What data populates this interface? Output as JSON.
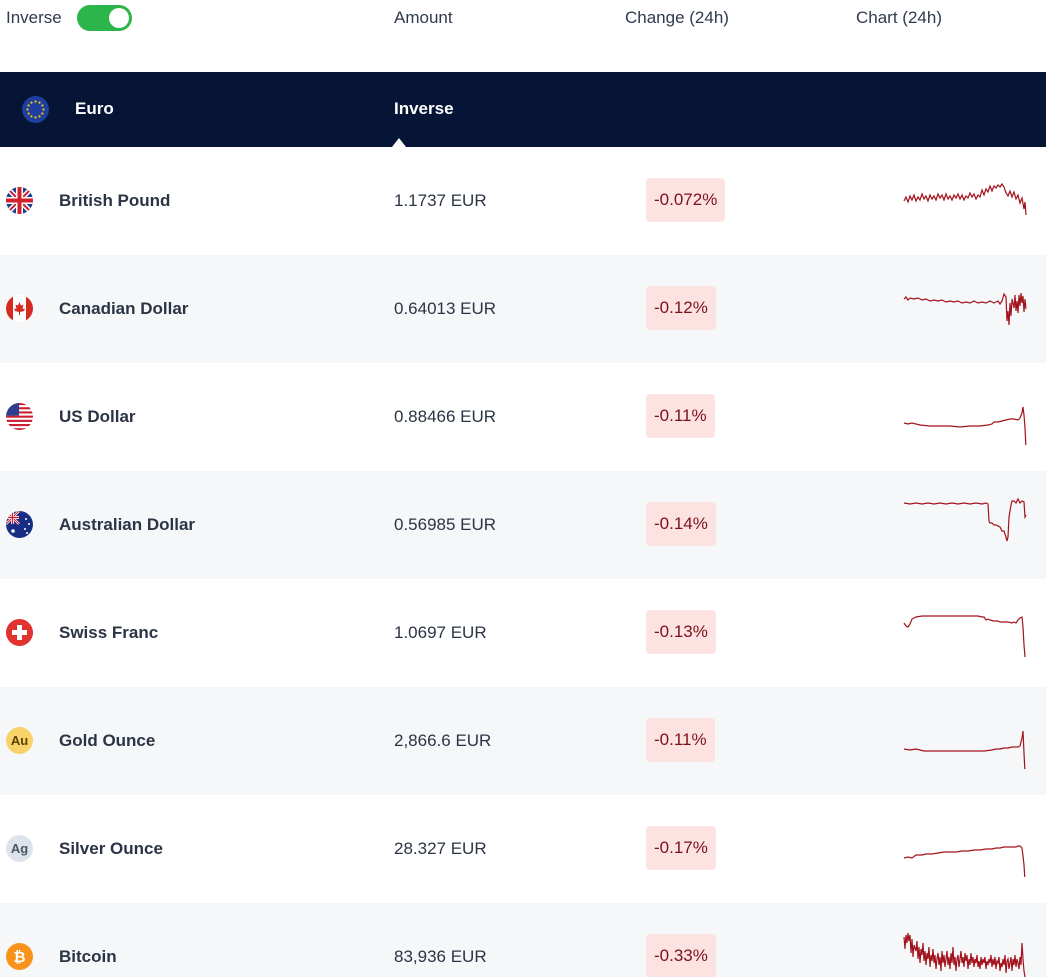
{
  "topbar": {
    "inverse_label": "Inverse",
    "inverse_on": true,
    "col_amount": "Amount",
    "col_change": "Change (24h)",
    "col_chart": "Chart (24h)"
  },
  "header": {
    "base_currency": "Euro",
    "mode_tab": "Inverse"
  },
  "colors": {
    "toggle_on": "#2bb54a",
    "header_bg": "#061535",
    "negative_bg": "#fde2e2",
    "negative_text": "#7b1219",
    "sparkline": "#a3121c"
  },
  "rows": [
    {
      "name": "British Pound",
      "amount": "1.1737 EUR",
      "change": "-0.072%",
      "icon": "uk-flag-icon"
    },
    {
      "name": "Canadian Dollar",
      "amount": "0.64013 EUR",
      "change": "-0.12%",
      "icon": "canada-flag-icon"
    },
    {
      "name": "US Dollar",
      "amount": "0.88466 EUR",
      "change": "-0.11%",
      "icon": "us-flag-icon"
    },
    {
      "name": "Australian Dollar",
      "amount": "0.56985 EUR",
      "change": "-0.14%",
      "icon": "australia-flag-icon"
    },
    {
      "name": "Swiss Franc",
      "amount": "1.0697 EUR",
      "change": "-0.13%",
      "icon": "swiss-flag-icon"
    },
    {
      "name": "Gold Ounce",
      "amount": "2,866.6 EUR",
      "change": "-0.11%",
      "icon": "gold-icon",
      "badge": "Au"
    },
    {
      "name": "Silver Ounce",
      "amount": "28.327 EUR",
      "change": "-0.17%",
      "icon": "silver-icon",
      "badge": "Ag"
    },
    {
      "name": "Bitcoin",
      "amount": "83,936 EUR",
      "change": "-0.33%",
      "icon": "bitcoin-icon"
    }
  ]
}
